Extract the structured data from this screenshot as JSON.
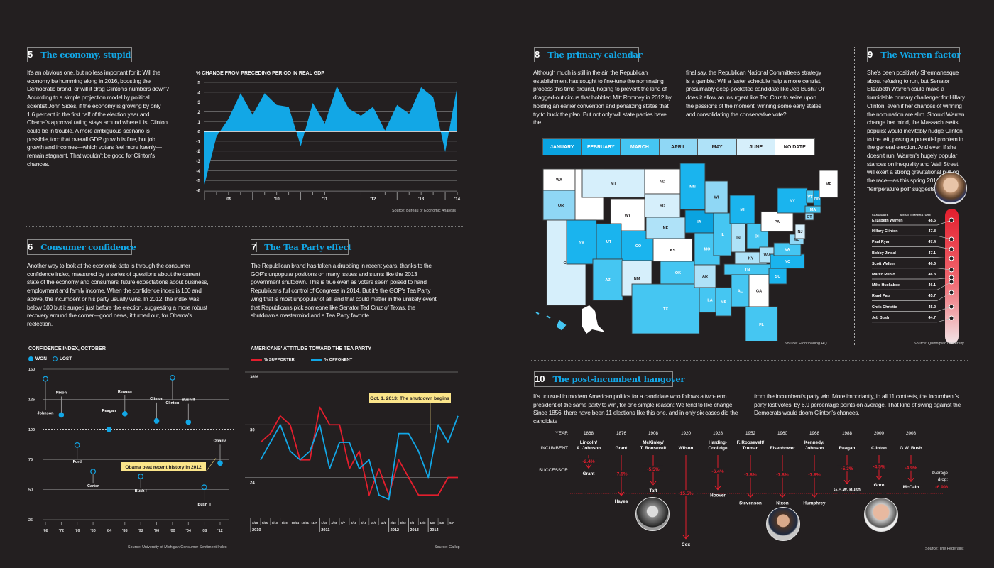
{
  "colors": {
    "background": "#231f20",
    "accent_blue": "#12a7e6",
    "red": "#e31e2d",
    "callout_yellow": "#fbe58a"
  },
  "sections": {
    "s5": {
      "number": "5",
      "title": "The economy, stupid",
      "body": "It's an obvious one, but no less important for it: Will the economy be humming along in 2016, boosting the Democratic brand, or will it drag Clinton's numbers down? According to a simple projection model by political scientist John Sides, if the economy is growing by only 1.6 percent in the first half of the election year and Obama's approval rating stays around where it is, Clinton could be in trouble. A more ambiguous scenario is possible, too: that overall GDP growth is fine, but job growth and incomes—which voters feel more keenly—remain stagnant. That wouldn't be good for Clinton's chances."
    },
    "s6": {
      "number": "6",
      "title": "Consumer confidence",
      "body": "Another way to look at the economic data is through the consumer confidence index, measured by a series of questions about the current state of the economy and consumers' future expectations about business, employment and family income. When the confidence index is 100 and above, the incumbent or his party usually wins. In 2012, the index was below 100 but it surged just before the election, suggesting a more robust recovery around the corner—good news, it turned out, for Obama's reelection."
    },
    "s7": {
      "number": "7",
      "title": "The Tea Party effect",
      "body": "The Republican brand has taken a drubbing in recent years, thanks to the GOP's unpopular positions on many issues and stunts like the 2013 government shutdown. This is true even as voters seem poised to hand Republicans full control of Congress in 2014. But it's the GOP's Tea Party wing that is most unpopular of all, and that could matter in the unlikely event that Republicans pick someone like Senator Ted Cruz of Texas, the shutdown's mastermind and a Tea Party favorite."
    },
    "s8": {
      "number": "8",
      "title": "The primary calendar",
      "body_col1": "Although much is still in the air, the Republican establishment has sought to fine-tune the nominating process this time around, hoping to prevent the kind of dragged-out circus that hobbled Mitt Romney in 2012 by holding an earlier convention and penalizing states that try to buck the plan. But not only will state parties have the",
      "body_col2": "final say, the Republican National Committee's strategy is a gamble: Will a faster schedule help a more centrist, presumably deep-pocketed candidate like Jeb Bush? Or does it allow an insurgent like Ted Cruz to seize upon the passions of the moment, winning some early states and consolidating the conservative vote?",
      "source": "Source: Frontloading HQ"
    },
    "s9": {
      "number": "9",
      "title": "The Warren factor",
      "body": "She's been positively Shermanesque about refusing to run, but Senator Elizabeth Warren could make a formidable primary challenger for Hillary Clinton, even if her chances of winning the nomination are slim. Should Warren change her mind, the Massachusetts populist would inevitably nudge Clinton to the left, posing a potential problem in the general election. And even if she doesn't run, Warren's hugely popular stances on inequality and Wall Street will exert a strong gravitational pull on the race—as this spring 2014 \"temperature poll\" suggests.",
      "source": "Source: Quinnipiac University"
    },
    "s10": {
      "number": "10",
      "title": "The post-incumbent hangover",
      "body_col1": "It's unusual in modern American politics for a candidate who follows a two-term president of the same party to win, for one simple reason: We tend to like change. Since 1856, there have been 11 elections like this one, and in only six cases did the candidate",
      "body_col2": "from the incumbent's party win. More importantly, in all 11 contests, the incumbent's party lost votes, by 6.9 percentage points on average. That kind of swing against the Democrats would doom Clinton's chances.",
      "source": "Source: The Federalist"
    }
  },
  "primary_calendar": {
    "legend": [
      {
        "label": "JANUARY",
        "color": "#0aa3e0"
      },
      {
        "label": "FEBRUARY",
        "color": "#1ab4ee"
      },
      {
        "label": "MARCH",
        "color": "#45c6f2"
      },
      {
        "label": "APRIL",
        "color": "#8fd7f5"
      },
      {
        "label": "MAY",
        "color": "#afe2f8"
      },
      {
        "label": "JUNE",
        "color": "#d6effb"
      },
      {
        "label": "NO DATE",
        "color": "#ffffff"
      }
    ],
    "states": [
      {
        "abbr": "WA",
        "month": "NO DATE"
      },
      {
        "abbr": "OR",
        "month": "APRIL"
      },
      {
        "abbr": "CA",
        "month": "JUNE"
      },
      {
        "abbr": "ID",
        "month": "NO DATE"
      },
      {
        "abbr": "NV",
        "month": "FEBRUARY"
      },
      {
        "abbr": "MT",
        "month": "JUNE"
      },
      {
        "abbr": "WY",
        "month": "NO DATE"
      },
      {
        "abbr": "UT",
        "month": "FEBRUARY"
      },
      {
        "abbr": "CO",
        "month": "FEBRUARY"
      },
      {
        "abbr": "AZ",
        "month": "MARCH"
      },
      {
        "abbr": "NM",
        "month": "JUNE"
      },
      {
        "abbr": "ND",
        "month": "NO DATE"
      },
      {
        "abbr": "SD",
        "month": "JUNE"
      },
      {
        "abbr": "NE",
        "month": "MAY"
      },
      {
        "abbr": "KS",
        "month": "NO DATE"
      },
      {
        "abbr": "OK",
        "month": "MARCH"
      },
      {
        "abbr": "TX",
        "month": "MARCH"
      },
      {
        "abbr": "MN",
        "month": "FEBRUARY"
      },
      {
        "abbr": "IA",
        "month": "JANUARY"
      },
      {
        "abbr": "MO",
        "month": "MARCH"
      },
      {
        "abbr": "AR",
        "month": "MAY"
      },
      {
        "abbr": "LA",
        "month": "MARCH"
      },
      {
        "abbr": "WI",
        "month": "APRIL"
      },
      {
        "abbr": "IL",
        "month": "MARCH"
      },
      {
        "abbr": "MS",
        "month": "MARCH"
      },
      {
        "abbr": "MI",
        "month": "FEBRUARY"
      },
      {
        "abbr": "IN",
        "month": "MAY"
      },
      {
        "abbr": "KY",
        "month": "MAY"
      },
      {
        "abbr": "TN",
        "month": "MARCH"
      },
      {
        "abbr": "AL",
        "month": "MARCH"
      },
      {
        "abbr": "OH",
        "month": "MARCH"
      },
      {
        "abbr": "WV",
        "month": "MAY"
      },
      {
        "abbr": "GA",
        "month": "NO DATE"
      },
      {
        "abbr": "FL",
        "month": "MARCH"
      },
      {
        "abbr": "SC",
        "month": "FEBRUARY"
      },
      {
        "abbr": "NC",
        "month": "FEBRUARY"
      },
      {
        "abbr": "VA",
        "month": "MARCH"
      },
      {
        "abbr": "MD",
        "month": "APRIL"
      },
      {
        "abbr": "PA",
        "month": "NO DATE"
      },
      {
        "abbr": "NJ",
        "month": "JUNE"
      },
      {
        "abbr": "NY",
        "month": "FEBRUARY"
      },
      {
        "abbr": "CT",
        "month": "APRIL"
      },
      {
        "abbr": "MA",
        "month": "MARCH"
      },
      {
        "abbr": "VT",
        "month": "MARCH"
      },
      {
        "abbr": "NH",
        "month": "JANUARY"
      },
      {
        "abbr": "ME",
        "month": "NO DATE"
      }
    ]
  },
  "chart_data": [
    {
      "type": "area",
      "title": "% CHANGE FROM PRECEDING PERIOD IN REAL GDP",
      "xlabel": "",
      "ylabel": "",
      "ylim": [
        -6,
        5
      ],
      "yticks": [
        5,
        4,
        3,
        2,
        1,
        0,
        -1,
        -2,
        -3,
        -4,
        -5,
        -6
      ],
      "xtick_labels": [
        "'09",
        "'10",
        "'11",
        "'12",
        "'13",
        "'14"
      ],
      "values": [
        -5.4,
        -0.5,
        1.3,
        3.9,
        1.7,
        3.9,
        2.7,
        2.5,
        -1.5,
        2.9,
        0.8,
        4.6,
        2.3,
        1.6,
        2.5,
        0.1,
        2.7,
        1.8,
        4.5,
        3.5,
        -2.1,
        4.6
      ],
      "color": "#12a7e6",
      "source": "Source: Bureau of Economic Analysis"
    },
    {
      "type": "scatter",
      "title": "CONFIDENCE INDEX, OCTOBER",
      "legend": [
        {
          "label": "WON"
        },
        {
          "label": "LOST"
        }
      ],
      "ylim": [
        25,
        150
      ],
      "yticks": [
        150,
        125,
        100,
        75,
        50,
        25
      ],
      "xtick_labels": [
        "'68",
        "'72",
        "'76",
        "'80",
        "'84",
        "'88",
        "'92",
        "'96",
        "'00",
        "'04",
        "'08",
        "'12"
      ],
      "points": [
        {
          "year": "'68",
          "value": 142,
          "name": "Johnson",
          "result": "lost"
        },
        {
          "year": "'72",
          "value": 112,
          "name": "Nixon",
          "result": "won"
        },
        {
          "year": "'76",
          "value": 87,
          "name": "Ford",
          "result": "lost"
        },
        {
          "year": "'80",
          "value": 65,
          "name": "Carter",
          "result": "lost"
        },
        {
          "year": "'84",
          "value": 100,
          "name": "Reagan",
          "result": "won"
        },
        {
          "year": "'88",
          "value": 113,
          "name": "Reagan",
          "result": "won"
        },
        {
          "year": "'92",
          "value": 61,
          "name": "Bush I",
          "result": "lost"
        },
        {
          "year": "'96",
          "value": 107,
          "name": "Clinton",
          "result": "won"
        },
        {
          "year": "'00",
          "value": 143,
          "name": "Clinton",
          "result": "lost"
        },
        {
          "year": "'04",
          "value": 106,
          "name": "Bush II",
          "result": "won"
        },
        {
          "year": "'08",
          "value": 52,
          "name": "Bush II",
          "result": "lost"
        },
        {
          "year": "'12",
          "value": 72,
          "name": "Obama",
          "result": "won"
        }
      ],
      "annotation": "Obama beat recent history in 2012",
      "source": "Source: University of Michigan Consumer Sentiment Index"
    },
    {
      "type": "line",
      "title": "AMERICANS' ATTITUDE TOWARD THE TEA PARTY",
      "ylim": [
        20,
        36
      ],
      "yticks": [
        {
          "value": 36,
          "label": "36%"
        },
        {
          "value": 30,
          "label": "30"
        },
        {
          "value": 24,
          "label": "24"
        }
      ],
      "x": [
        "3/28",
        "5/25",
        "6/13",
        "8/30",
        "10/24",
        "10/31",
        "11/7",
        "1/16",
        "4/23",
        "8/7",
        "9/11",
        "9/18",
        "10/9",
        "12/1",
        "2/19",
        "8/22",
        "9/8",
        "12/8",
        "4/30",
        "6/8",
        "9/7"
      ],
      "year_labels": [
        "2010",
        "2011",
        "2012",
        "2013",
        "2014"
      ],
      "series": [
        {
          "name": "% SUPPORTER",
          "color": "#e31e2d",
          "values": [
            28,
            29,
            31,
            30,
            26,
            26,
            32,
            30,
            30,
            25,
            27,
            22,
            25,
            22,
            26,
            24,
            22,
            22,
            22,
            24,
            24
          ]
        },
        {
          "name": "% OPPONENT",
          "color": "#12a7e6",
          "values": [
            26,
            28,
            30,
            27,
            26,
            27,
            30,
            25,
            28,
            28,
            25,
            26,
            22,
            21.5,
            29,
            29,
            27,
            24,
            30,
            28,
            31
          ]
        }
      ],
      "annotation": "Oct. 1, 2013: The shutdown begins",
      "source": "Source: Gallup"
    },
    {
      "type": "table",
      "title": "Temperature poll",
      "columns": [
        "CANDIDATE",
        "MEAN TEMPERATURE"
      ],
      "rows": [
        {
          "name": "Elizabeth Warren",
          "value": 48.6
        },
        {
          "name": "Hillary Clinton",
          "value": 47.8
        },
        {
          "name": "Paul Ryan",
          "value": 47.4
        },
        {
          "name": "Bobby Jindal",
          "value": 47.1
        },
        {
          "name": "Scott Walker",
          "value": 46.6
        },
        {
          "name": "Marco Rubio",
          "value": 46.3
        },
        {
          "name": "Mike Huckabee",
          "value": 46.1
        },
        {
          "name": "Rand Paul",
          "value": 45.7
        },
        {
          "name": "Chris Christie",
          "value": 45.2
        },
        {
          "name": "Jeb Bush",
          "value": 44.7
        }
      ]
    },
    {
      "type": "table",
      "title": "Post-incumbent vote drop",
      "row_labels": [
        "YEAR",
        "INCUMBENT",
        "SUCCESSOR"
      ],
      "elections": [
        {
          "year": "1868",
          "incumbent": "Lincoln/ A. Johnson",
          "successor": "Grant",
          "drop": "-2.4%",
          "value": -2.4
        },
        {
          "year": "1876",
          "incumbent": "Grant",
          "successor": "Hayes",
          "drop": "-7.5%",
          "value": -7.5
        },
        {
          "year": "1908",
          "incumbent": "McKinley/ T. Roosevelt",
          "successor": "Taft",
          "drop": "-5.5%",
          "value": -5.5
        },
        {
          "year": "1920",
          "incumbent": "Wilson",
          "successor": "Cox",
          "drop": "-15.5%",
          "value": -15.5
        },
        {
          "year": "1928",
          "incumbent": "Harding- Coolidge",
          "successor": "Hoover",
          "drop": "-6.4%",
          "value": -6.4
        },
        {
          "year": "1952",
          "incumbent": "F. Roosevelt/ Truman",
          "successor": "Stevenson",
          "drop": "-7.8%",
          "value": -7.8
        },
        {
          "year": "1960",
          "incumbent": "Eisenhower",
          "successor": "Nixon",
          "drop": "-7.8%",
          "value": -7.8
        },
        {
          "year": "1968",
          "incumbent": "Kennedy/ Johnson",
          "successor": "Humphrey",
          "drop": "-7.8%",
          "value": -7.8
        },
        {
          "year": "1988",
          "incumbent": "Reagan",
          "successor": "G.H.W. Bush",
          "drop": "-5.3%",
          "value": -5.3
        },
        {
          "year": "2000",
          "incumbent": "Clinton",
          "successor": "Gore",
          "drop": "-4.5%",
          "value": -4.5
        },
        {
          "year": "2008",
          "incumbent": "G.W. Bush",
          "successor": "McCain",
          "drop": "-4.9%",
          "value": -4.9
        }
      ],
      "average_label": "Average drop:",
      "average_value": "-6.9%"
    }
  ]
}
